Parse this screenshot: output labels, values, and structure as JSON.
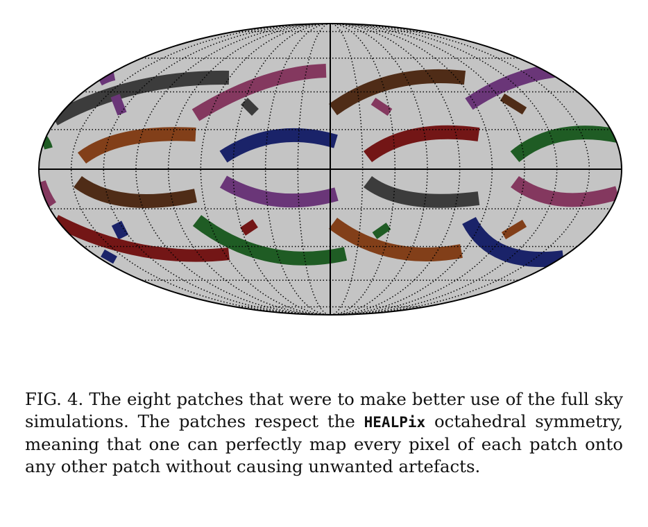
{
  "figure": {
    "background_color": "#c4c4c4",
    "grid_color": "#000000",
    "patches": [
      {
        "name": "dark-gray-patch",
        "color": "#3c3c3c"
      },
      {
        "name": "purple-patch",
        "color": "#6a3678"
      },
      {
        "name": "magenta-patch",
        "color": "#84385f"
      },
      {
        "name": "brown-patch",
        "color": "#4f2c17"
      },
      {
        "name": "orange-patch",
        "color": "#823f19"
      },
      {
        "name": "navy-patch",
        "color": "#1a2369"
      },
      {
        "name": "red-patch",
        "color": "#731616"
      },
      {
        "name": "green-patch",
        "color": "#1f5c24"
      }
    ]
  },
  "caption": {
    "part1": "FIG. 4. The eight patches that were to make better use of the full sky simulations. The patches respect the ",
    "code": "HEALPix",
    "part2": " octahedral symmetry, meaning that one can perfectly map every pixel of each patch onto any other patch without causing unwanted artefacts."
  }
}
